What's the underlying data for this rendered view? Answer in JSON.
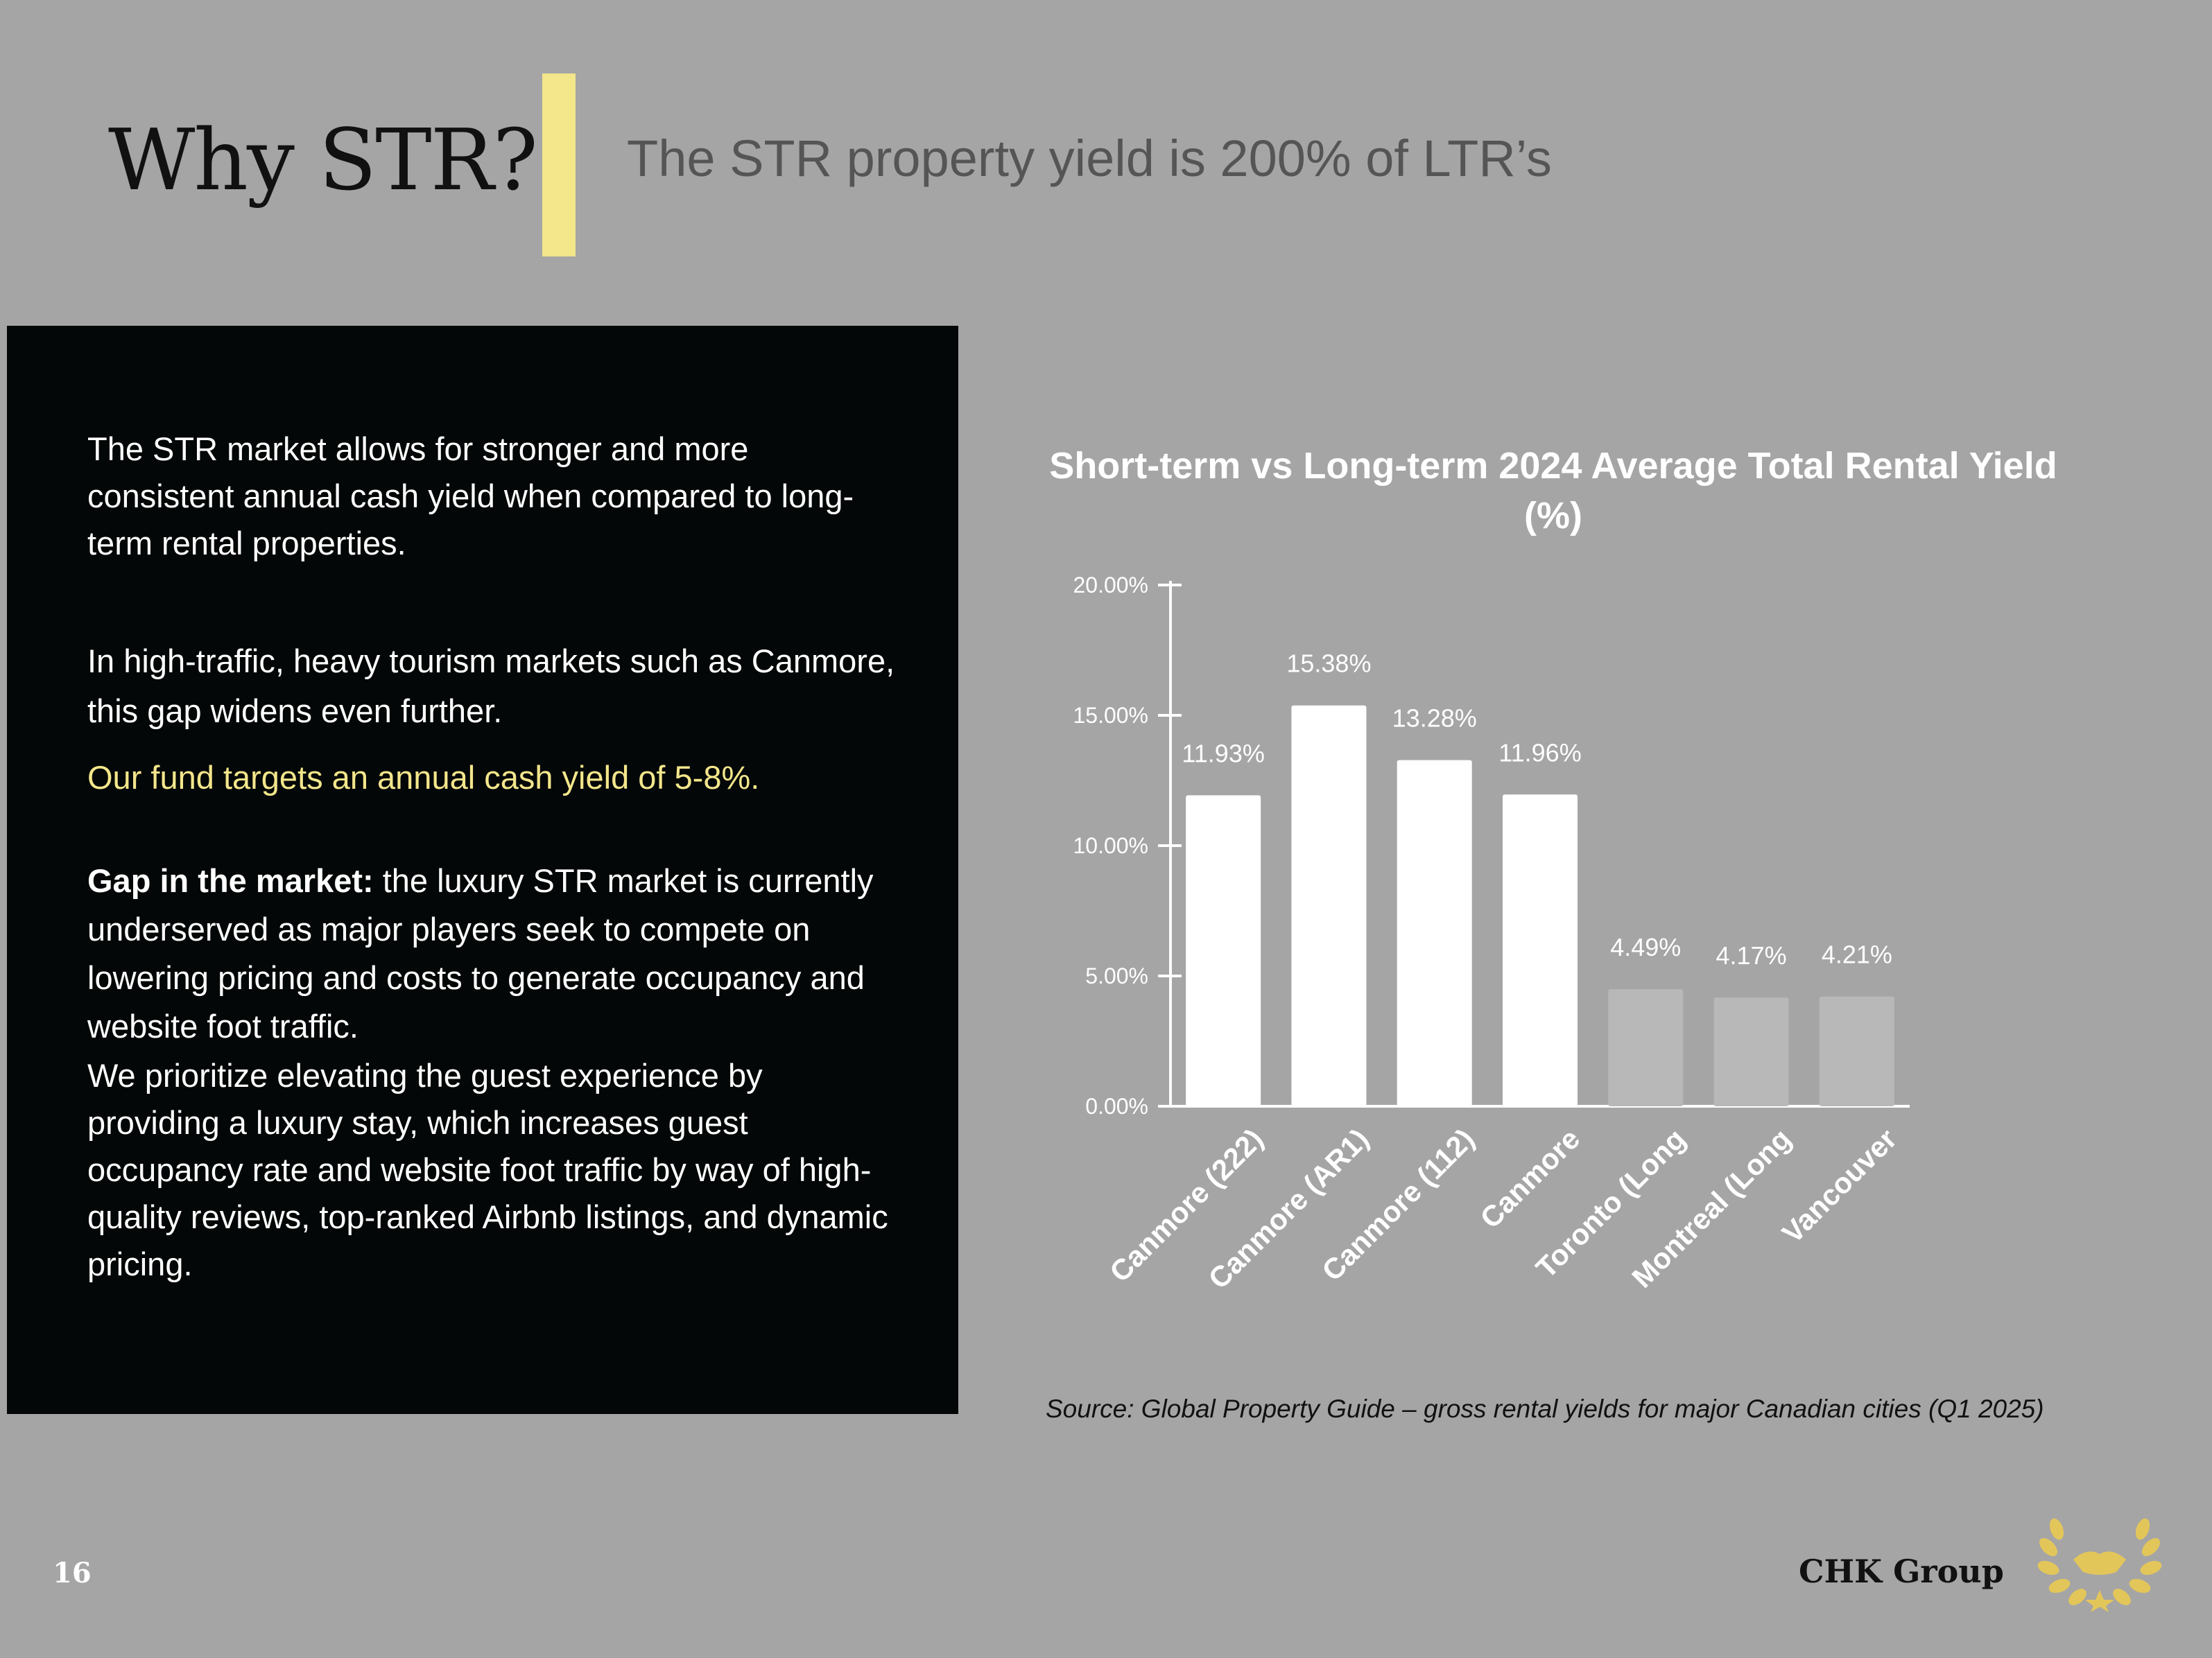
{
  "slide": {
    "title": "Why STR?",
    "subtitle": "The STR property yield is 200% of LTR’s",
    "page_number": "16",
    "brand": "CHK Group"
  },
  "panel": {
    "para1": "The STR market allows for stronger and more consistent annual cash yield when compared to long-term rental properties.",
    "para2": "In high-traffic, heavy tourism markets such as Canmore, this gap widens even further.",
    "para3": "Our fund targets an annual cash yield of 5-8%.",
    "para4_bold": "Gap in the market:",
    "para4_rest": " the luxury STR market is currently underserved as major players seek to compete on lowering pricing and costs to generate occupancy and website foot traffic.",
    "para5": "We prioritize elevating the guest experience by providing a luxury stay, which increases guest occupancy rate and website foot traffic by way of high-quality reviews, top-ranked Airbnb listings, and dynamic pricing."
  },
  "chart_data": {
    "type": "bar",
    "title": "Short-term vs Long-term 2024 Average Total Rental Yield (%)",
    "categories": [
      "Canmore (222)",
      "Canmore (AR1)",
      "Canmore (112)",
      "Canmore",
      "Toronto (Long",
      "Montreal (Long",
      "Vancouver"
    ],
    "values": [
      11.93,
      15.38,
      13.28,
      11.96,
      4.49,
      4.17,
      4.21
    ],
    "value_labels": [
      "11.93%",
      "15.38%",
      "13.28%",
      "11.96%",
      "4.49%",
      "4.17%",
      "4.21%"
    ],
    "yticks": [
      "0.00%",
      "5.00%",
      "10.00%",
      "15.00%",
      "20.00%"
    ],
    "ylim": [
      0,
      20
    ],
    "grid": false,
    "colors": {
      "short_term": "#ffffff",
      "long_term": "#b8b8b8"
    },
    "long_term_start_index": 4
  },
  "source": "Source: Global Property Guide – gross rental yields for major Canadian cities (Q1 2025)"
}
